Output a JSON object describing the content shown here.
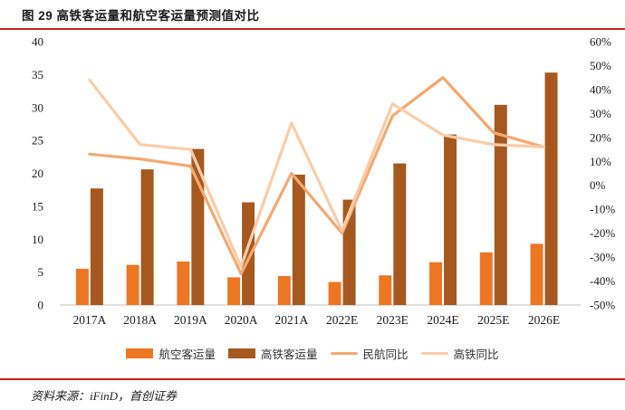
{
  "figure": {
    "title": "图 29 高铁客运量和航空客运量预测值对比",
    "source": "资料来源：iFinD，首创证券"
  },
  "colors": {
    "accent_rule": "#c9241c",
    "aviation_bar": "#ED7623",
    "hsr_bar": "#A6581F",
    "aviation_yoy_line": "#F5A971",
    "hsr_yoy_line": "#FACDA8",
    "axis_line": "#c9c9c9",
    "axis_text": "#1a1a1a"
  },
  "legend": {
    "items": [
      {
        "label": "航空客运量",
        "type": "bar",
        "color": "#ED7623"
      },
      {
        "label": "高铁客运量",
        "type": "bar",
        "color": "#A6581F"
      },
      {
        "label": "民航同比",
        "type": "line",
        "color": "#F5A971"
      },
      {
        "label": "高铁同比",
        "type": "line",
        "color": "#FACDA8"
      }
    ]
  },
  "chart_data": {
    "type": "bar",
    "subtype": "combo-bar-line-dual-axis",
    "title": "高铁客运量和航空客运量预测值对比",
    "categories": [
      "2017A",
      "2018A",
      "2019A",
      "2020A",
      "2021A",
      "2022E",
      "2023E",
      "2024E",
      "2025E",
      "2026E"
    ],
    "series": [
      {
        "name": "航空客运量",
        "type": "bar",
        "axis": "left",
        "color": "#ED7623",
        "values": [
          5.5,
          6.1,
          6.6,
          4.2,
          4.4,
          3.5,
          4.5,
          6.5,
          8.0,
          9.3
        ]
      },
      {
        "name": "高铁客运量",
        "type": "bar",
        "axis": "left",
        "color": "#A6581F",
        "values": [
          17.7,
          20.6,
          23.7,
          15.6,
          19.8,
          16.0,
          21.5,
          25.9,
          30.4,
          35.3
        ]
      },
      {
        "name": "民航同比",
        "type": "line",
        "axis": "right",
        "color": "#F5A971",
        "values": [
          13,
          11,
          8,
          -37,
          5,
          -20,
          29,
          45,
          22,
          16
        ]
      },
      {
        "name": "高铁同比",
        "type": "line",
        "axis": "right",
        "color": "#FACDA8",
        "values": [
          44,
          17,
          15,
          -34,
          26,
          -19,
          34,
          21,
          17,
          16
        ]
      }
    ],
    "left_axis": {
      "min": 0,
      "max": 40,
      "step": 5,
      "ticks": [
        0,
        5,
        10,
        15,
        20,
        25,
        30,
        35,
        40
      ]
    },
    "right_axis": {
      "min": -50,
      "max": 60,
      "step": 10,
      "format": "percent",
      "ticks": [
        -50,
        -40,
        -30,
        -20,
        -10,
        0,
        10,
        20,
        30,
        40,
        50,
        60
      ]
    },
    "grid": false,
    "legend_position": "bottom"
  }
}
